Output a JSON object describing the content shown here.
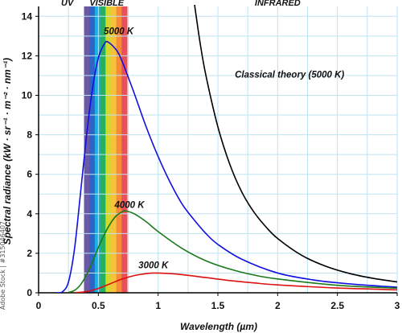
{
  "chart_data": {
    "type": "line",
    "title": "",
    "xlabel": "Wavelength (µm)",
    "ylabel": "Spectral radiance (kW · sr⁻¹ · m⁻² · nm⁻¹)",
    "xlim": [
      0,
      3
    ],
    "ylim": [
      0,
      14.5
    ],
    "x_ticks": [
      0,
      0.5,
      1,
      1.5,
      2,
      2.5,
      3
    ],
    "x_tick_labels": [
      "0",
      "0.5",
      "1",
      "1.5",
      "2",
      "2.5",
      "3"
    ],
    "y_ticks": [
      0,
      2,
      4,
      6,
      8,
      10,
      12,
      14
    ],
    "y_tick_labels": [
      "0",
      "2",
      "4",
      "6",
      "8",
      "10",
      "12",
      "14"
    ],
    "grid": true,
    "region_labels": [
      {
        "text": "UV",
        "x": 0.24
      },
      {
        "text": "VISIBLE",
        "x": 0.57
      },
      {
        "text": "INFRARED",
        "x": 2.0
      }
    ],
    "visible_band": {
      "x_start": 0.38,
      "x_end": 0.74,
      "colors": [
        "#6a5aa6",
        "#2f64c6",
        "#19b0e6",
        "#29b05e",
        "#d2d82c",
        "#f6c23a",
        "#f48a3a",
        "#e8505a"
      ]
    },
    "series": [
      {
        "name": "5000 K",
        "color": "#1010e0",
        "x": [
          0.15,
          0.2,
          0.25,
          0.3,
          0.35,
          0.4,
          0.45,
          0.5,
          0.55,
          0.58,
          0.65,
          0.7,
          0.8,
          0.9,
          1.0,
          1.1,
          1.2,
          1.3,
          1.4,
          1.5,
          1.7,
          2.0,
          2.3,
          2.6,
          3.0
        ],
        "y": [
          0.001,
          0.05,
          0.55,
          2.2,
          5.0,
          7.9,
          10.3,
          11.9,
          12.6,
          12.7,
          12.3,
          11.7,
          10.1,
          8.4,
          6.9,
          5.6,
          4.5,
          3.7,
          3.0,
          2.45,
          1.7,
          1.0,
          0.65,
          0.45,
          0.28
        ]
      },
      {
        "name": "4000 K",
        "color": "#1a7a1a",
        "x": [
          0.25,
          0.3,
          0.35,
          0.4,
          0.45,
          0.5,
          0.55,
          0.6,
          0.65,
          0.7,
          0.725,
          0.8,
          0.9,
          1.0,
          1.2,
          1.4,
          1.6,
          1.8,
          2.0,
          2.5,
          3.0
        ],
        "y": [
          0.02,
          0.12,
          0.4,
          0.9,
          1.55,
          2.3,
          2.95,
          3.5,
          3.9,
          4.1,
          4.15,
          4.0,
          3.6,
          3.1,
          2.25,
          1.62,
          1.2,
          0.9,
          0.7,
          0.38,
          0.23
        ]
      },
      {
        "name": "3000 K",
        "color": "#dd1111",
        "x": [
          0.3,
          0.4,
          0.5,
          0.6,
          0.7,
          0.8,
          0.9,
          0.97,
          1.1,
          1.2,
          1.4,
          1.6,
          1.8,
          2.0,
          2.5,
          3.0
        ],
        "y": [
          0.005,
          0.06,
          0.22,
          0.46,
          0.7,
          0.87,
          0.97,
          1.0,
          0.97,
          0.92,
          0.77,
          0.62,
          0.5,
          0.4,
          0.24,
          0.15
        ]
      },
      {
        "name": "Classical theory (5000 K)",
        "color": "#000000",
        "x": [
          1.3,
          1.35,
          1.4,
          1.5,
          1.6,
          1.7,
          1.8,
          1.9,
          2.0,
          2.2,
          2.4,
          2.6,
          2.8,
          3.0
        ],
        "y": [
          14.8,
          12.7,
          11.0,
          8.4,
          6.5,
          5.1,
          4.1,
          3.35,
          2.75,
          1.9,
          1.35,
          0.98,
          0.73,
          0.55
        ]
      }
    ],
    "annotations": [
      {
        "text": "5000 K",
        "x": 0.67,
        "y": 13.1,
        "series": "5000 K"
      },
      {
        "text": "4000 K",
        "x": 0.76,
        "y": 4.3,
        "series": "4000 K"
      },
      {
        "text": "3000 K",
        "x": 0.96,
        "y": 1.25,
        "series": "3000 K"
      },
      {
        "text": "Classical theory (5000 K)",
        "x": 2.1,
        "y": 10.9,
        "series": "Classical theory (5000 K)"
      }
    ]
  },
  "watermark": {
    "side_text": "Adobe Stock | #315046407"
  }
}
